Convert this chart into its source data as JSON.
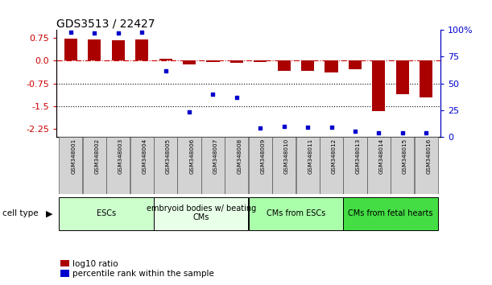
{
  "title": "GDS3513 / 22427",
  "samples": [
    "GSM348001",
    "GSM348002",
    "GSM348003",
    "GSM348004",
    "GSM348005",
    "GSM348006",
    "GSM348007",
    "GSM348008",
    "GSM348009",
    "GSM348010",
    "GSM348011",
    "GSM348012",
    "GSM348013",
    "GSM348014",
    "GSM348015",
    "GSM348016"
  ],
  "log10_ratio": [
    0.72,
    0.68,
    0.65,
    0.7,
    0.06,
    -0.13,
    -0.05,
    -0.07,
    -0.05,
    -0.35,
    -0.35,
    -0.4,
    -0.3,
    -1.65,
    -1.1,
    -1.2
  ],
  "percentile_rank": [
    98,
    97,
    97,
    98,
    62,
    23,
    40,
    37,
    8,
    10,
    9,
    9,
    5,
    4,
    4,
    4
  ],
  "cell_type_groups": [
    {
      "label": "ESCs",
      "start": 0,
      "end": 3,
      "color": "#ccffcc"
    },
    {
      "label": "embryoid bodies w/ beating\nCMs",
      "start": 4,
      "end": 7,
      "color": "#e8ffe8"
    },
    {
      "label": "CMs from ESCs",
      "start": 8,
      "end": 11,
      "color": "#aaffaa"
    },
    {
      "label": "CMs from fetal hearts",
      "start": 12,
      "end": 15,
      "color": "#44dd44"
    }
  ],
  "ylim_left": [
    -2.5,
    1.0
  ],
  "ylim_right": [
    0,
    100
  ],
  "yticks_left": [
    0.75,
    0.0,
    -0.75,
    -1.5,
    -2.25
  ],
  "yticks_right": [
    100,
    75,
    50,
    25,
    0
  ],
  "hline_dashed_y": 0.0,
  "hlines_dotted": [
    -0.75,
    -1.5
  ],
  "bar_color": "#aa0000",
  "scatter_color": "#0000cc",
  "background_color": "#ffffff",
  "xlim": [
    -0.6,
    15.6
  ]
}
